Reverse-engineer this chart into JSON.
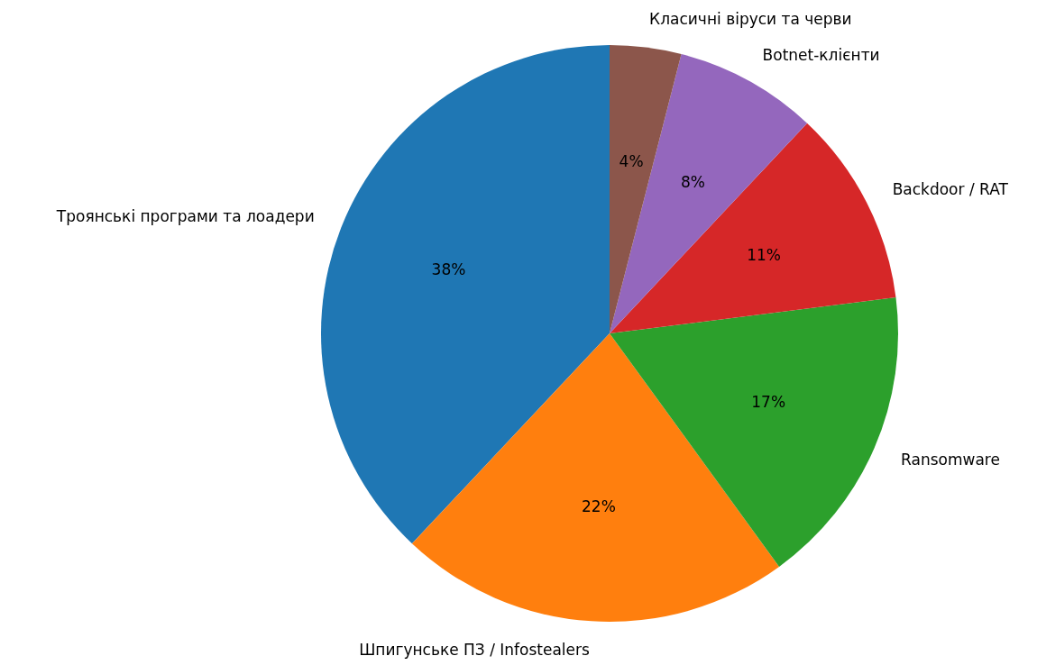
{
  "chart_data": {
    "type": "pie",
    "categories": [
      "Троянські програми та лоадери",
      "Шпигунське ПЗ / Infostealers",
      "Ransomware",
      "Backdoor / RAT",
      "Botnet-клієнти",
      "Класичні віруси та черви"
    ],
    "values": [
      38,
      22,
      17,
      11,
      8,
      4
    ],
    "colors": [
      "#1f77b4",
      "#ff7f0e",
      "#2ca02c",
      "#d62728",
      "#9467bd",
      "#8c564b"
    ],
    "value_labels": [
      "38%",
      "22%",
      "17%",
      "11%",
      "8%",
      "4%"
    ]
  }
}
